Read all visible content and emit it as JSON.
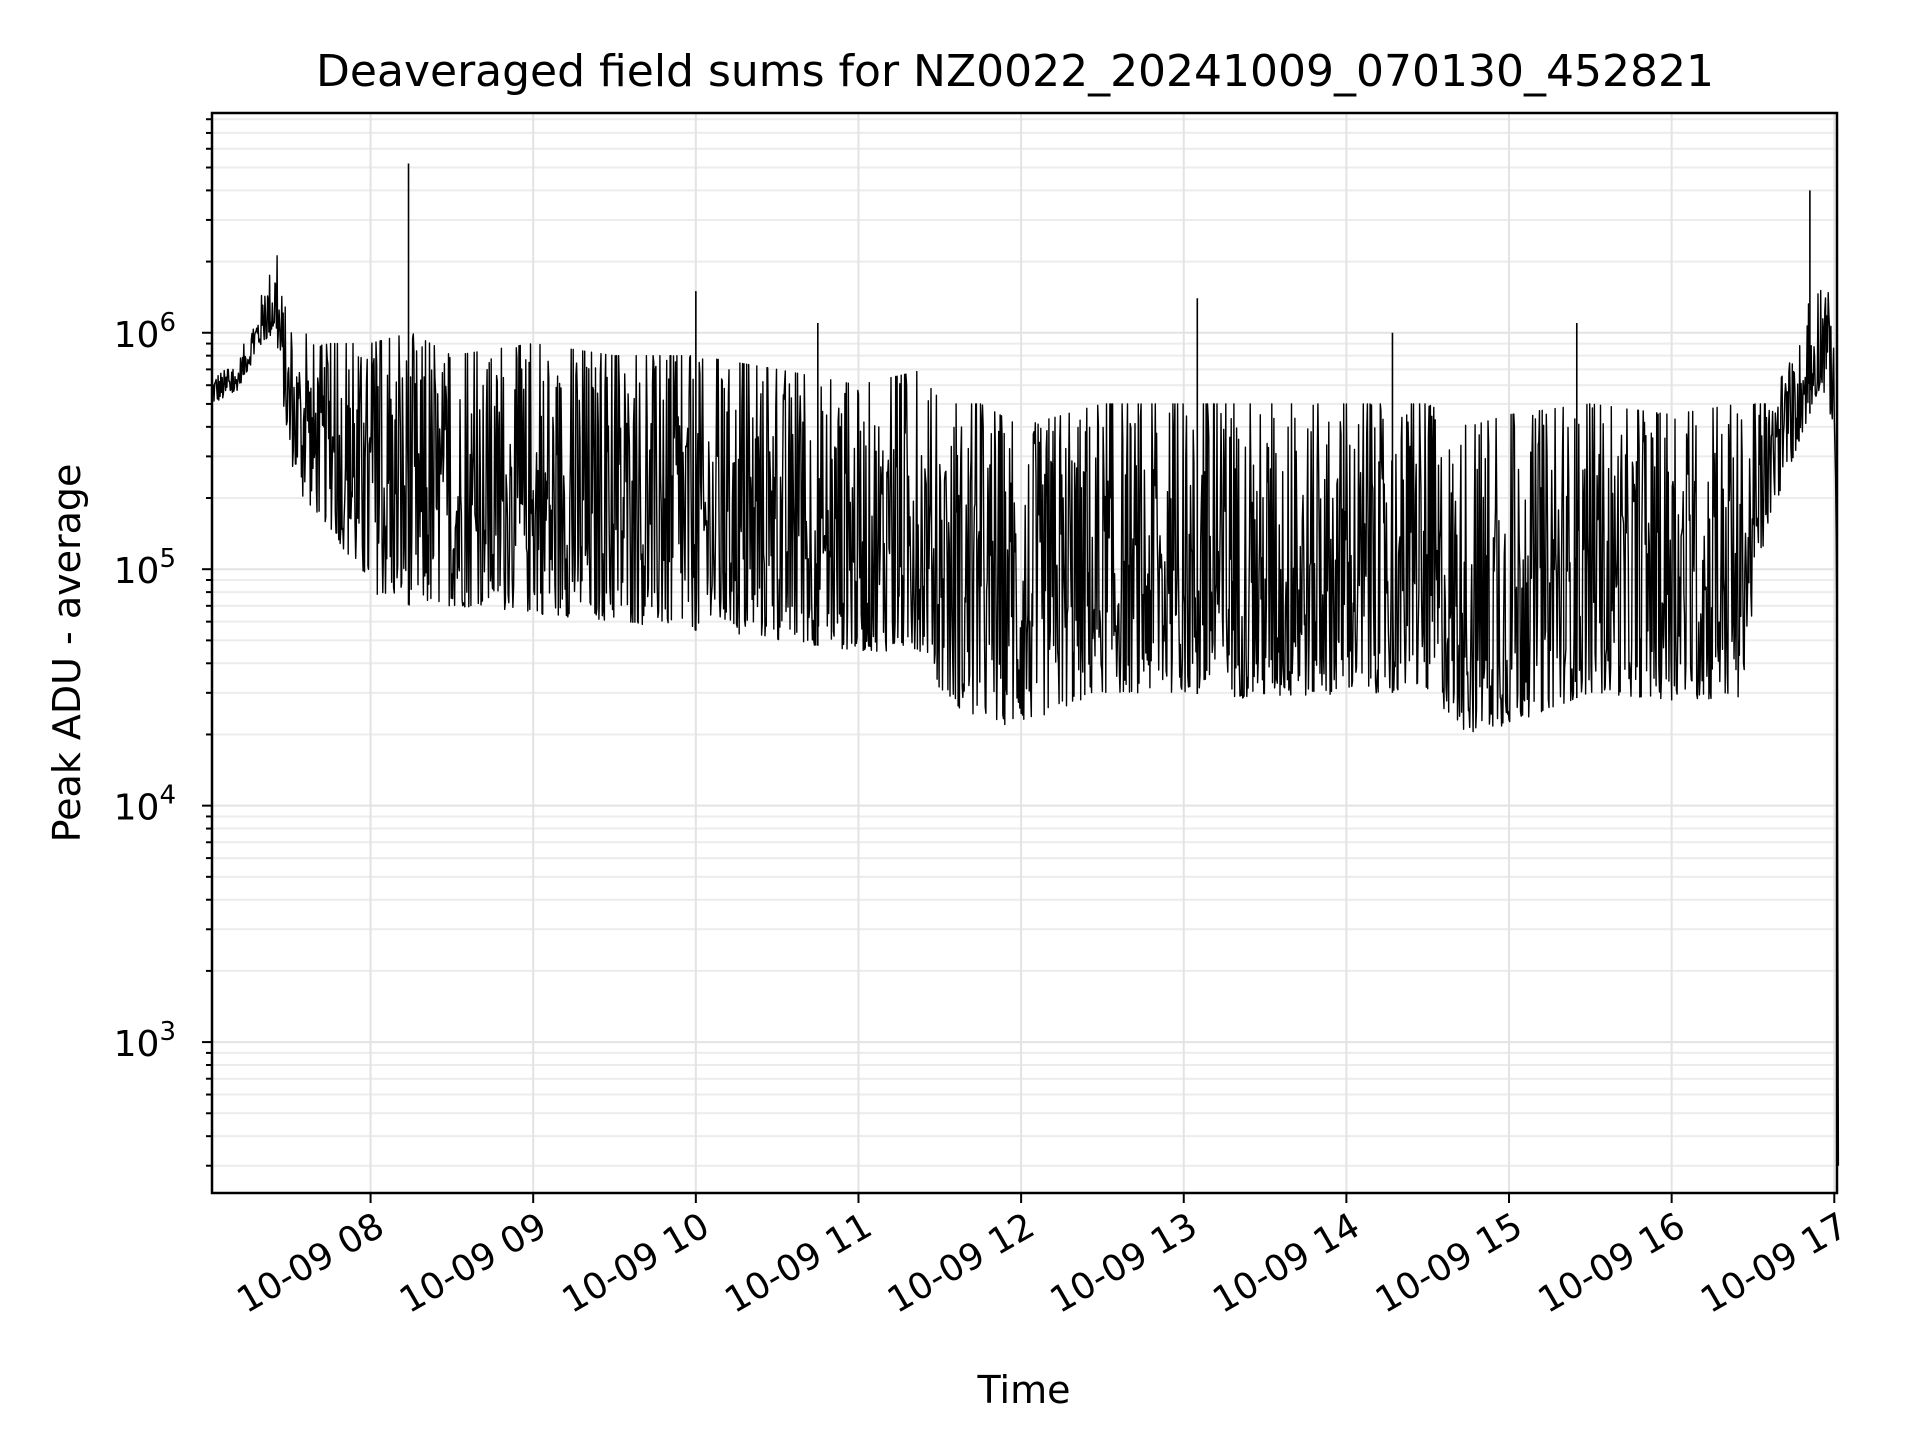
{
  "chart_data": {
    "type": "line",
    "title": "Deaveraged field sums for NZ0022_20241009_070130_452821",
    "xlabel": "Time",
    "ylabel": "Peak ADU - average",
    "xscale": "time",
    "yscale": "log",
    "xlim": [
      "2024-10-09 07:01:30",
      "2024-10-09 17:01:00"
    ],
    "ylim": [
      230,
      8500000
    ],
    "grid": true,
    "line_color": "#000000",
    "x_ticks": [
      "2024-10-09 08:00",
      "2024-10-09 09:00",
      "2024-10-09 10:00",
      "2024-10-09 11:00",
      "2024-10-09 12:00",
      "2024-10-09 13:00",
      "2024-10-09 14:00",
      "2024-10-09 15:00",
      "2024-10-09 16:00",
      "2024-10-09 17:00"
    ],
    "x_tick_labels": [
      "10-09 08",
      "10-09 09",
      "10-09 10",
      "10-09 11",
      "10-09 12",
      "10-09 13",
      "10-09 14",
      "10-09 15",
      "10-09 16",
      "10-09 17"
    ],
    "y_ticks": [
      1000,
      10000,
      100000,
      1000000
    ],
    "y_tick_bases": [
      "10",
      "10",
      "10",
      "10"
    ],
    "y_tick_exponents": [
      "3",
      "4",
      "5",
      "6"
    ],
    "series": [
      {
        "x": [
          "2024-10-09 07:01:30",
          "2024-10-09 07:10",
          "2024-10-09 07:20",
          "2024-10-09 07:25",
          "2024-10-09 07:30",
          "2024-10-09 07:35",
          "2024-10-09 07:45",
          "2024-10-09 08:00",
          "2024-10-09 08:15",
          "2024-10-09 08:30",
          "2024-10-09 09:00",
          "2024-10-09 09:30",
          "2024-10-09 10:00",
          "2024-10-09 10:30",
          "2024-10-09 11:00",
          "2024-10-09 11:25",
          "2024-10-09 11:30",
          "2024-10-09 11:45",
          "2024-10-09 12:00",
          "2024-10-09 12:30",
          "2024-10-09 13:00",
          "2024-10-09 13:30",
          "2024-10-09 14:00",
          "2024-10-09 14:30",
          "2024-10-09 14:45",
          "2024-10-09 15:00",
          "2024-10-09 15:30",
          "2024-10-09 16:00",
          "2024-10-09 16:25",
          "2024-10-09 16:35",
          "2024-10-09 16:45",
          "2024-10-09 16:55",
          "2024-10-09 17:00",
          "2024-10-09 17:01",
          "2024-10-09 17:01:30"
        ],
        "y_low": [
          500000,
          550000,
          900000,
          1000000,
          300000,
          200000,
          150000,
          80000,
          70000,
          70000,
          65000,
          60000,
          55000,
          50000,
          45000,
          45000,
          30000,
          22000,
          22000,
          30000,
          30000,
          28000,
          30000,
          30000,
          20000,
          22000,
          30000,
          28000,
          28000,
          150000,
          300000,
          600000,
          400000,
          50000,
          300
        ],
        "y_high": [
          700000,
          700000,
          1500000,
          2300000,
          1000000,
          1000000,
          900000,
          900000,
          1000000,
          800000,
          900000,
          800000,
          800000,
          700000,
          600000,
          700000,
          500000,
          500000,
          400000,
          500000,
          500000,
          500000,
          500000,
          500000,
          400000,
          450000,
          500000,
          450000,
          500000,
          500000,
          800000,
          2000000,
          1200000,
          60000,
          300
        ],
        "spikes": [
          {
            "x": "2024-10-09 08:14",
            "y": 5200000
          },
          {
            "x": "2024-10-09 10:00",
            "y": 1500000
          },
          {
            "x": "2024-10-09 10:45",
            "y": 1100000
          },
          {
            "x": "2024-10-09 13:05",
            "y": 1400000
          },
          {
            "x": "2024-10-09 14:17",
            "y": 1000000
          },
          {
            "x": "2024-10-09 15:25",
            "y": 1100000
          },
          {
            "x": "2024-10-09 16:51",
            "y": 4000000
          }
        ]
      }
    ]
  }
}
